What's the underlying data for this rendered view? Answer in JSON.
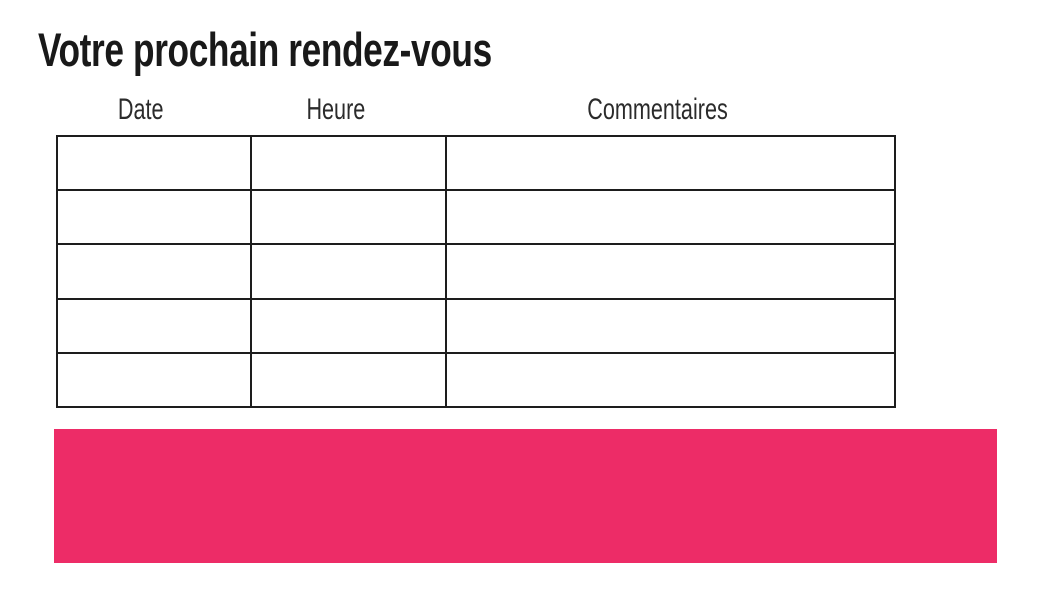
{
  "page": {
    "title": "Votre prochain rendez-vous"
  },
  "table": {
    "headers": [
      "Date",
      "Heure",
      "Commentaires"
    ],
    "rows": [
      [
        "",
        "",
        ""
      ],
      [
        "",
        "",
        ""
      ],
      [
        "",
        "",
        ""
      ],
      [
        "",
        "",
        ""
      ],
      [
        "",
        "",
        ""
      ]
    ]
  },
  "colors": {
    "accent_pink": "#ED2C67",
    "table_border": "#1D1D1D",
    "title_text": "#191919",
    "header_text": "#2B2B2B"
  }
}
